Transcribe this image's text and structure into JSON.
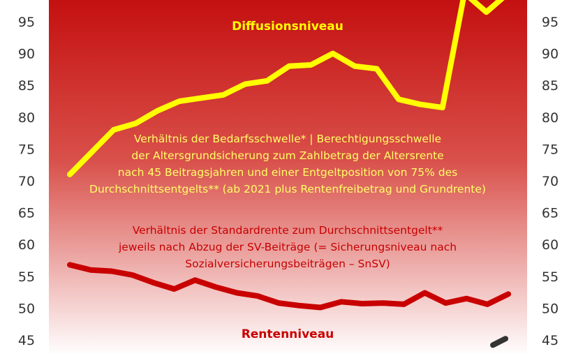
{
  "chart_data": {
    "type": "line",
    "ylim": [
      43,
      99
    ],
    "yticks": [
      45,
      50,
      55,
      60,
      65,
      70,
      75,
      80,
      85,
      90,
      95
    ],
    "grid": false,
    "legend": "none",
    "series": [
      {
        "name": "Diffusionsniveau",
        "color": "#ffff00",
        "values": [
          71.0,
          74.5,
          78.0,
          79.0,
          81.0,
          82.5,
          83.0,
          83.5,
          85.2,
          85.7,
          88.0,
          88.2,
          90.0,
          88.0,
          87.6,
          82.8,
          82.0,
          81.5,
          99.5,
          96.5,
          99.5
        ]
      },
      {
        "name": "Rentenniveau",
        "color": "#c80000",
        "values": [
          56.8,
          56.0,
          55.8,
          55.2,
          54.0,
          53.0,
          54.4,
          53.3,
          52.4,
          51.9,
          50.8,
          50.4,
          50.1,
          51.0,
          50.7,
          50.8,
          50.6,
          52.4,
          50.8,
          51.5,
          50.6,
          52.2
        ]
      }
    ],
    "annotations": [
      {
        "color": "#ffff66",
        "lines": [
          "Verhältnis der Bedarfsschwelle* | Berechtigungsschwelle",
          "der Altersgrundsicherung zum Zahlbetrag der Altersrente",
          "nach 45 Beitragsjahren und einer Entgeltposition von 75% des",
          "Durchschnittsentgelts** (ab 2021 plus Rentenfreibetrag und Grundrente)"
        ]
      },
      {
        "color": "#c80000",
        "lines": [
          "Verhältnis der Standardrente zum Durchschnittsentgelt**",
          "jeweils nach Abzug der SV-Beiträge (= Sicherungsniveau nach",
          "Sozialversicherungsbeiträgen – SnSV)"
        ]
      }
    ],
    "colors": {
      "background_top": "#c41010",
      "background_bottom": "#ffffff",
      "series_title_yellow": "#ffff00",
      "series_title_red": "#c80000",
      "third_line": "#333333"
    },
    "third_line_values": [
      44.2,
      45.2
    ]
  }
}
